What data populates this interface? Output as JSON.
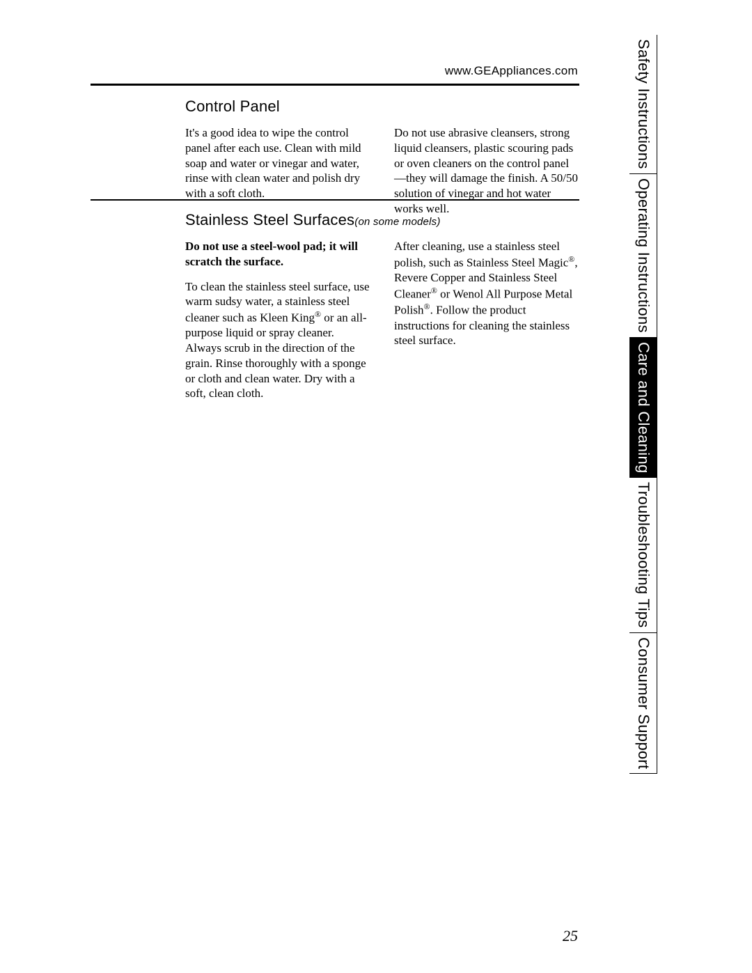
{
  "header": {
    "url": "www.GEAppliances.com"
  },
  "section1": {
    "title": "Control Panel",
    "col1": "It's a good idea to wipe the control panel after each use. Clean with mild soap and water or vinegar and water, rinse with clean water and polish dry with a soft cloth.",
    "col2": "Do not use abrasive cleansers, strong liquid cleansers, plastic scouring pads or oven cleaners on the control panel—they will damage the finish. A 50/50 solution of vinegar and hot water works well."
  },
  "section2": {
    "title": "Stainless Steel Surfaces",
    "title_note": "(on some models)",
    "col1_bold": "Do not use a steel-wool pad; it will scratch the surface.",
    "col1_p1a": "To clean the stainless steel surface, use warm sudsy water, a stainless steel cleaner such as Kleen King",
    "col1_p1b": " or an all-purpose liquid or spray cleaner. Always scrub in the direction of the grain. Rinse thoroughly with a sponge or cloth and clean water. Dry with a soft, clean cloth.",
    "col2_a": "After cleaning, use a stainless steel polish, such as Stainless Steel Magic",
    "col2_b": ", Revere Copper and Stainless Steel Cleaner",
    "col2_c": " or Wenol All Purpose Metal Polish",
    "col2_d": ". Follow the product instructions for cleaning the stainless steel surface."
  },
  "tabs": {
    "t1": "Safety Instructions",
    "t2": "Operating Instructions",
    "t3": "Care and Cleaning",
    "t4": "Troubleshooting Tips",
    "t5": "Consumer Support"
  },
  "page_number": "25",
  "reg_mark": "®"
}
